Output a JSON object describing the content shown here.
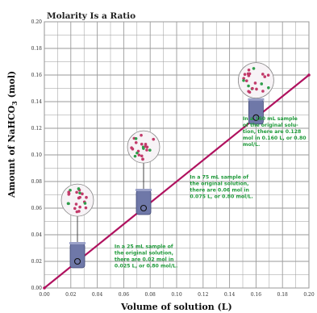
{
  "chart_data": {
    "type": "line",
    "title": "Molarity Is a Ratio",
    "xlabel": "Volume of solution (L)",
    "ylabel_main": "Amount of NaHCO",
    "ylabel_sub": "3",
    "ylabel_unit": " (mol)",
    "xlim": [
      0,
      0.2
    ],
    "ylim": [
      0,
      0.2
    ],
    "grid": true,
    "x_ticks": [
      "0.00",
      "0.02",
      "0.04",
      "0.06",
      "0.08",
      "0.10",
      "0.12",
      "0.14",
      "0.16",
      "0.18",
      "0.20"
    ],
    "y_ticks": [
      "0.00",
      "0.02",
      "0.04",
      "0.06",
      "0.08",
      "0.10",
      "0.12",
      "0.14",
      "0.16",
      "0.18",
      "0.20"
    ],
    "series": [
      {
        "x": [
          0,
          0.025,
          0.075,
          0.16,
          0.2
        ],
        "y": [
          0,
          0.02,
          0.06,
          0.128,
          0.16
        ]
      }
    ],
    "highlighted_points": [
      {
        "x": 0.025,
        "y": 0.02
      },
      {
        "x": 0.075,
        "y": 0.06
      },
      {
        "x": 0.16,
        "y": 0.128
      }
    ],
    "annotations": [
      {
        "lines": [
          "In a 25 mL sample of",
          "the original solution,",
          "there are 0.02 mol in",
          "0.025 L, or 0.80 mol/L."
        ]
      },
      {
        "lines": [
          "In a 75 mL sample of",
          "the original solution,",
          "there are 0.06 mol in",
          "0.075 L, or 0.80 mol/L."
        ]
      },
      {
        "lines": [
          "In a 160 mL sample",
          "of the original solu-",
          "tion, there are 0.128",
          "mol in 0.160 L, or 0.80",
          "mol/L."
        ]
      }
    ],
    "colors": {
      "line": "#b0125f",
      "grid": "#9a9a9a",
      "annotation_text": "#1f9a3a",
      "beaker": "#6f78a8",
      "particle_red": "#c23a6a",
      "particle_green": "#2e9d4a"
    }
  }
}
